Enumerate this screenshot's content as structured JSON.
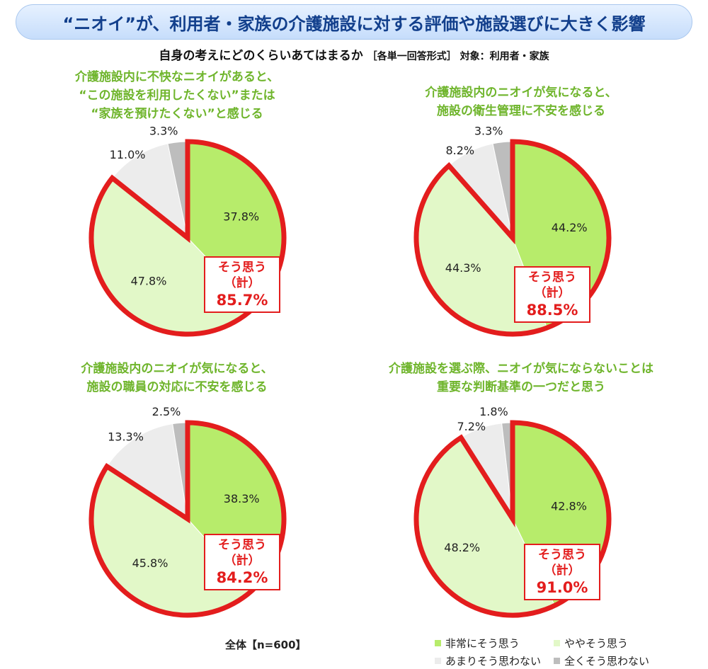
{
  "header": {
    "title": "“ニオイ”が、利用者・家族の介護施設に対する評価や施設選びに大きく影響"
  },
  "subtitle": {
    "main": "自身の考えにどのくらいあてはまるか",
    "format": "［各単一回答形式］ 対象：利用者・家族"
  },
  "footer": {
    "sample": "全体【n=600】"
  },
  "colors": {
    "strong_agree": "#b7ec6b",
    "somewhat_agree": "#e2f8c8",
    "not_really": "#ececec",
    "not_at_all": "#bdbdbd",
    "highlight": "#e31d1d",
    "title_green": "#6fb52c"
  },
  "legend": [
    {
      "label": "非常にそう思う"
    },
    {
      "label": "ややそう思う"
    },
    {
      "label": "あまりそう思わない"
    },
    {
      "label": "全くそう思わない"
    }
  ],
  "chart_data": [
    {
      "type": "pie",
      "title": [
        "介護施設内に不快なニオイがあると、",
        "“この施設を利用したくない”または",
        "“家族を預けたくない”と感じる"
      ],
      "categories": [
        "非常にそう思う",
        "ややそう思う",
        "あまりそう思わない",
        "全くそう思わない"
      ],
      "values": [
        37.8,
        47.8,
        11.0,
        3.3
      ],
      "labels": [
        "37.8%",
        "47.8%",
        "11.0%",
        "3.3%"
      ],
      "combined": {
        "label_line1": "そう思う",
        "label_line2": "（計）",
        "value": 85.7,
        "value_label": "85.7%"
      }
    },
    {
      "type": "pie",
      "title": [
        "介護施設内のニオイが気になると、",
        "施設の衛生管理に不安を感じる"
      ],
      "categories": [
        "非常にそう思う",
        "ややそう思う",
        "あまりそう思わない",
        "全くそう思わない"
      ],
      "values": [
        44.2,
        44.3,
        8.2,
        3.3
      ],
      "labels": [
        "44.2%",
        "44.3%",
        "8.2%",
        "3.3%"
      ],
      "combined": {
        "label_line1": "そう思う",
        "label_line2": "（計）",
        "value": 88.5,
        "value_label": "88.5%"
      }
    },
    {
      "type": "pie",
      "title": [
        "介護施設内のニオイが気になると、",
        "施設の職員の対応に不安を感じる"
      ],
      "categories": [
        "非常にそう思う",
        "ややそう思う",
        "あまりそう思わない",
        "全くそう思わない"
      ],
      "values": [
        38.3,
        45.8,
        13.3,
        2.5
      ],
      "labels": [
        "38.3%",
        "45.8%",
        "13.3%",
        "2.5%"
      ],
      "combined": {
        "label_line1": "そう思う",
        "label_line2": "（計）",
        "value": 84.2,
        "value_label": "84.2%"
      }
    },
    {
      "type": "pie",
      "title": [
        "介護施設を選ぶ際、ニオイが気にならないことは",
        "重要な判断基準の一つだと思う"
      ],
      "categories": [
        "非常にそう思う",
        "ややそう思う",
        "あまりそう思わない",
        "全くそう思わない"
      ],
      "values": [
        42.8,
        48.2,
        7.2,
        1.8
      ],
      "labels": [
        "42.8%",
        "48.2%",
        "7.2%",
        "1.8%"
      ],
      "combined": {
        "label_line1": "そう思う",
        "label_line2": "（計）",
        "value": 91.0,
        "value_label": "91.0%"
      }
    }
  ]
}
